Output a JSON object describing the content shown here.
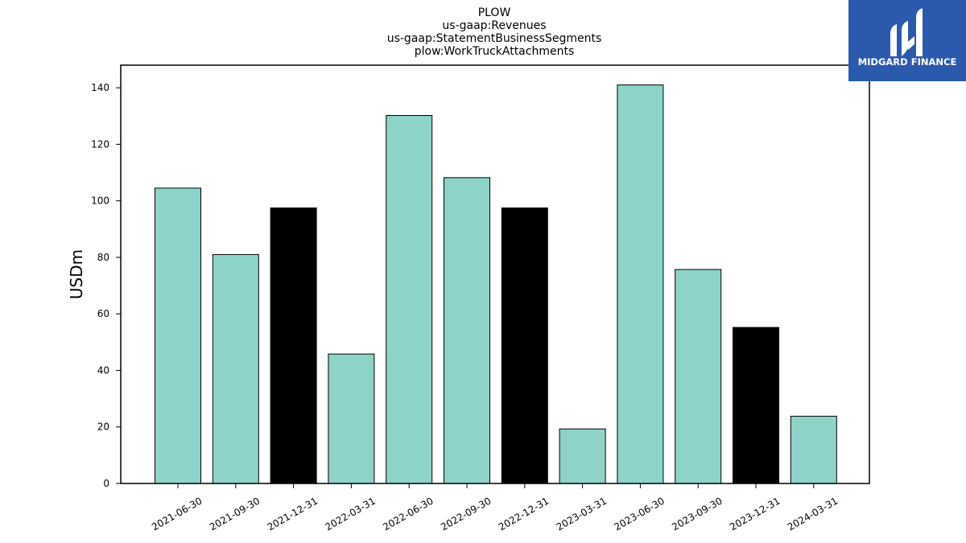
{
  "chart_data": {
    "type": "bar",
    "title_lines": [
      "PLOW",
      "us-gaap:Revenues",
      "us-gaap:StatementBusinessSegments",
      "plow:WorkTruckAttachments"
    ],
    "xlabel": "",
    "ylabel": "USDm",
    "ylim": [
      0,
      148
    ],
    "yticks": [
      0,
      20,
      40,
      60,
      80,
      100,
      120,
      140
    ],
    "categories": [
      "2021-06-30",
      "2021-09-30",
      "2021-12-31",
      "2022-03-31",
      "2022-06-30",
      "2022-09-30",
      "2022-12-31",
      "2023-03-31",
      "2023-06-30",
      "2023-09-30",
      "2023-12-31",
      "2024-03-31"
    ],
    "values": [
      104.5,
      81.0,
      97.5,
      45.8,
      130.2,
      108.2,
      97.5,
      19.3,
      141.0,
      75.7,
      55.2,
      23.8
    ],
    "bar_colors": [
      "#8dd3c7",
      "#8dd3c7",
      "#000000",
      "#8dd3c7",
      "#8dd3c7",
      "#8dd3c7",
      "#000000",
      "#8dd3c7",
      "#8dd3c7",
      "#8dd3c7",
      "#000000",
      "#8dd3c7"
    ],
    "grid": false
  },
  "logo": {
    "text": "MIDGARD FINANCE",
    "background": "#2b5aad",
    "icon": "midgard-logo-icon"
  }
}
